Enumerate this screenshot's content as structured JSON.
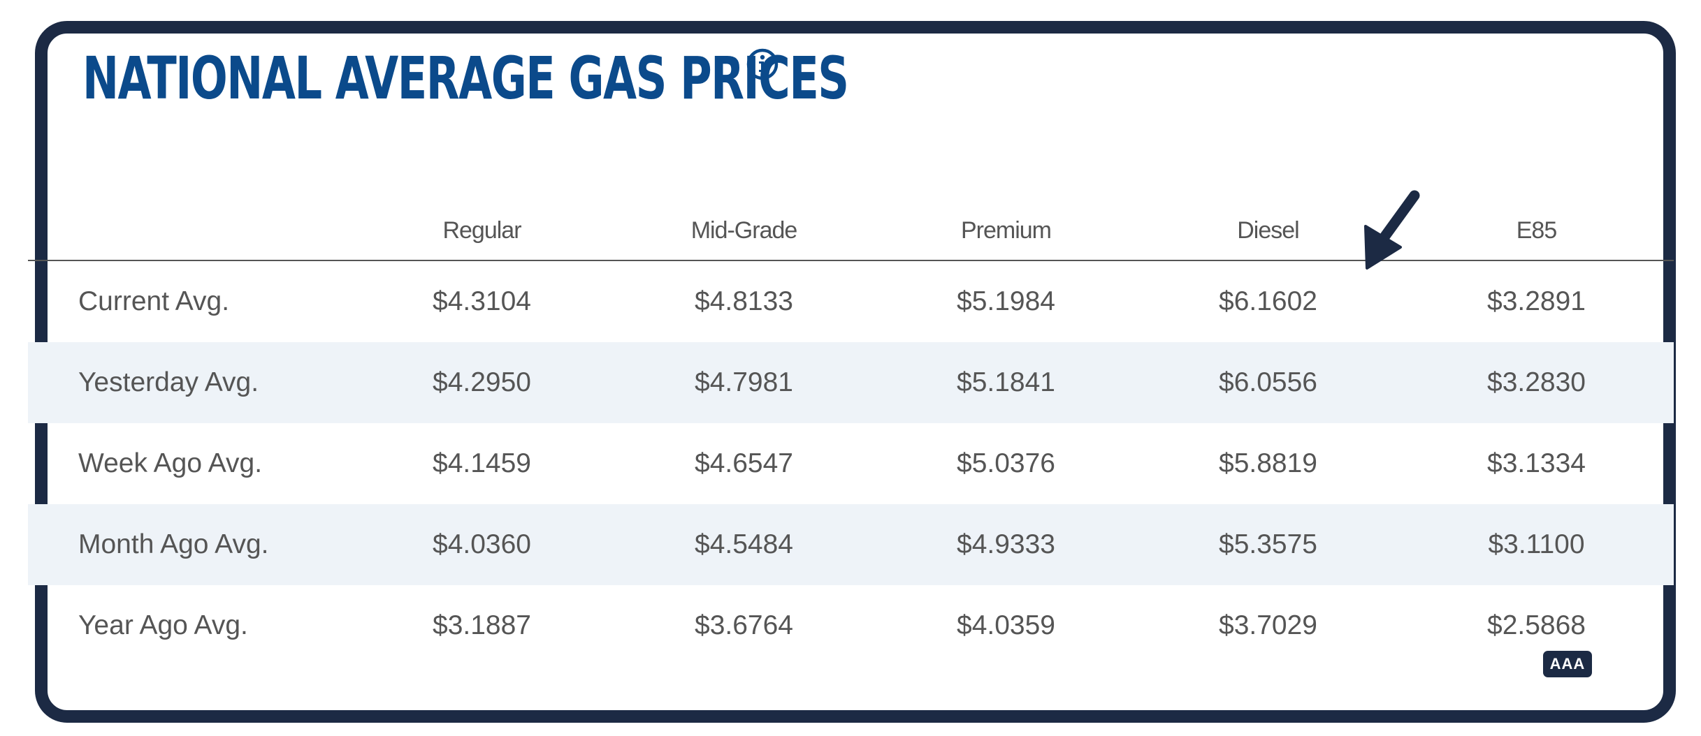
{
  "title": "NATIONAL AVERAGE GAS PRICES",
  "icons": {
    "info": "info-icon",
    "arrow": "arrow-pointer-icon"
  },
  "colors": {
    "title": "#0b4a8b",
    "frame": "#1c2a44",
    "stripe": "#eef3f8",
    "text": "#555555"
  },
  "table": {
    "columns": [
      "",
      "Regular",
      "Mid-Grade",
      "Premium",
      "Diesel",
      "E85"
    ],
    "rows": [
      {
        "label": "Current Avg.",
        "values": [
          "$4.3104",
          "$4.8133",
          "$5.1984",
          "$6.1602",
          "$3.2891"
        ]
      },
      {
        "label": "Yesterday Avg.",
        "values": [
          "$4.2950",
          "$4.7981",
          "$5.1841",
          "$6.0556",
          "$3.2830"
        ]
      },
      {
        "label": "Week Ago Avg.",
        "values": [
          "$4.1459",
          "$4.6547",
          "$5.0376",
          "$5.8819",
          "$3.1334"
        ]
      },
      {
        "label": "Month Ago Avg.",
        "values": [
          "$4.0360",
          "$4.5484",
          "$4.9333",
          "$5.3575",
          "$3.1100"
        ]
      },
      {
        "label": "Year Ago Avg.",
        "values": [
          "$3.1887",
          "$3.6764",
          "$4.0359",
          "$3.7029",
          "$2.5868"
        ]
      }
    ]
  },
  "badge": "AAA"
}
